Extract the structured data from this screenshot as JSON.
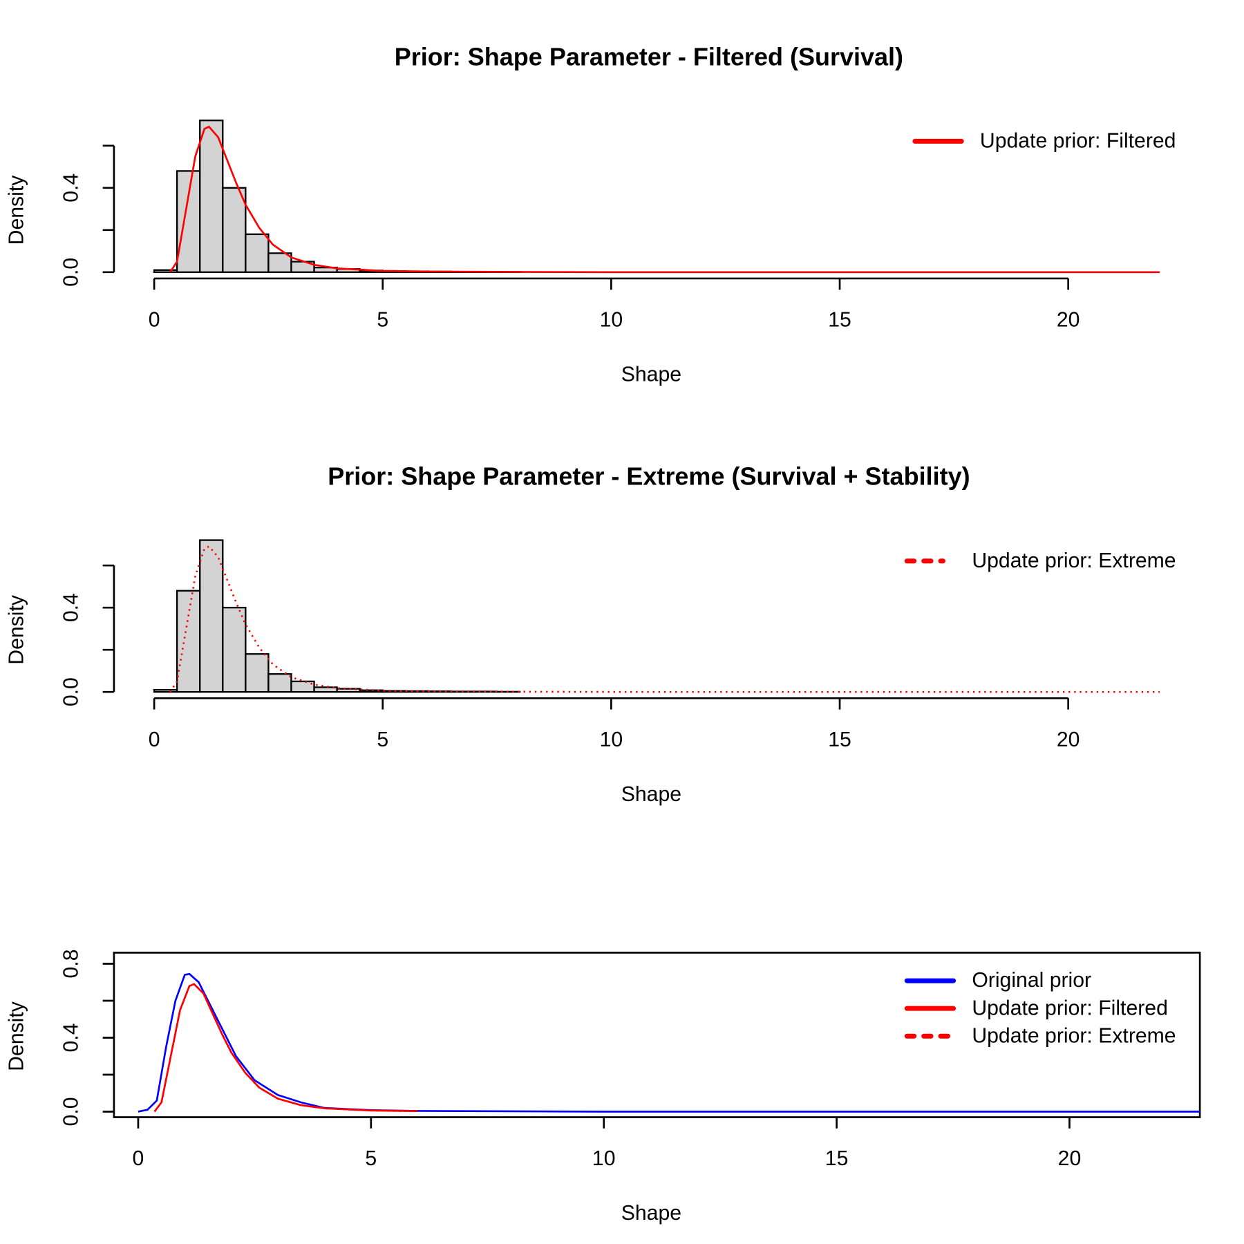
{
  "chart_data": [
    {
      "type": "histogram",
      "title": "Prior: Shape Parameter - Filtered (Survival)",
      "x_label": "Shape",
      "y_label": "Density",
      "bins": [
        0,
        0.5,
        1,
        1.5,
        2,
        2.5,
        3,
        3.5,
        4,
        4.5,
        5,
        5.5,
        6,
        6.5,
        7,
        7.5,
        8
      ],
      "values": [
        0.01,
        0.48,
        0.72,
        0.4,
        0.18,
        0.09,
        0.05,
        0.022,
        0.015,
        0.008,
        0.005,
        0.004,
        0.003,
        0.002,
        0.002,
        0.001
      ],
      "color": "#d3d3d3",
      "series": [
        {
          "name": "Update prior: Filtered",
          "color": "#ff0000",
          "linestyle": "solid",
          "x": [
            0.35,
            0.5,
            0.7,
            0.9,
            1.1,
            1.2,
            1.4,
            1.6,
            1.8,
            2.0,
            2.3,
            2.6,
            3.0,
            3.5,
            4,
            5,
            6,
            8,
            10,
            15,
            22
          ],
          "values": [
            0,
            0.05,
            0.3,
            0.55,
            0.68,
            0.69,
            0.64,
            0.53,
            0.42,
            0.32,
            0.21,
            0.13,
            0.07,
            0.035,
            0.018,
            0.006,
            0.003,
            0.001,
            0,
            0,
            0
          ]
        }
      ],
      "xlim": [
        -0.88,
        22.88
      ],
      "ylim": [
        -0.03,
        0.76
      ],
      "xticks": [
        0,
        5,
        10,
        15,
        20
      ],
      "yticks": [
        {
          "value": 0,
          "label": "0.0"
        },
        {
          "value": 0.2,
          "label": null
        },
        {
          "value": 0.4,
          "label": "0.4"
        },
        {
          "value": 0.6,
          "label": null
        }
      ],
      "legend": "topright"
    },
    {
      "type": "histogram",
      "title": "Prior: Shape Parameter - Extreme (Survival + Stability)",
      "x_label": "Shape",
      "y_label": "Density",
      "bins": [
        0,
        0.5,
        1,
        1.5,
        2,
        2.5,
        3,
        3.5,
        4,
        4.5,
        5,
        5.5,
        6,
        6.5,
        7,
        7.5,
        8
      ],
      "values": [
        0.01,
        0.48,
        0.72,
        0.4,
        0.18,
        0.085,
        0.05,
        0.022,
        0.015,
        0.008,
        0.005,
        0.004,
        0.003,
        0.002,
        0.002,
        0.001
      ],
      "color": "#d3d3d3",
      "series": [
        {
          "name": "Update prior: Extreme",
          "color": "#ff0000",
          "linestyle": "dotted",
          "x": [
            0.35,
            0.5,
            0.7,
            0.9,
            1.1,
            1.2,
            1.4,
            1.6,
            1.8,
            2.0,
            2.3,
            2.6,
            3.0,
            3.5,
            4,
            5,
            6,
            8,
            10,
            15,
            22
          ],
          "values": [
            0,
            0.05,
            0.3,
            0.55,
            0.68,
            0.69,
            0.64,
            0.53,
            0.42,
            0.32,
            0.21,
            0.13,
            0.07,
            0.035,
            0.018,
            0.006,
            0.003,
            0.001,
            0,
            0,
            0
          ]
        }
      ],
      "xlim": [
        -0.88,
        22.88
      ],
      "ylim": [
        -0.03,
        0.76
      ],
      "xticks": [
        0,
        5,
        10,
        15,
        20
      ],
      "yticks": [
        {
          "value": 0,
          "label": "0.0"
        },
        {
          "value": 0.2,
          "label": null
        },
        {
          "value": 0.4,
          "label": "0.4"
        },
        {
          "value": 0.6,
          "label": null
        }
      ],
      "legend": "topright"
    },
    {
      "type": "line",
      "x_label": "Shape",
      "y_label": "Density",
      "box": true,
      "series": [
        {
          "name": "Original prior",
          "color": "#0000ff",
          "linestyle": "solid",
          "x": [
            0,
            0.2,
            0.4,
            0.6,
            0.8,
            1.0,
            1.1,
            1.3,
            1.5,
            1.8,
            2.1,
            2.5,
            3,
            3.5,
            4,
            5,
            6,
            8,
            10,
            15,
            22.8
          ],
          "values": [
            0,
            0.01,
            0.06,
            0.35,
            0.6,
            0.74,
            0.745,
            0.7,
            0.6,
            0.45,
            0.3,
            0.17,
            0.09,
            0.05,
            0.02,
            0.008,
            0.004,
            0.002,
            0,
            0,
            0
          ]
        },
        {
          "name": "Update prior: Filtered",
          "color": "#ff0000",
          "linestyle": "solid",
          "x": [
            0.35,
            0.5,
            0.7,
            0.9,
            1.1,
            1.2,
            1.4,
            1.6,
            1.8,
            2.0,
            2.3,
            2.6,
            3.0,
            3.5,
            4,
            5,
            6
          ],
          "values": [
            0,
            0.05,
            0.3,
            0.55,
            0.68,
            0.69,
            0.64,
            0.53,
            0.42,
            0.32,
            0.21,
            0.13,
            0.07,
            0.035,
            0.018,
            0.006,
            0.003
          ]
        },
        {
          "name": "Update prior: Extreme",
          "color": "#ff0000",
          "linestyle": "dotted",
          "x": [
            0.35,
            0.5,
            0.7,
            0.9,
            1.1,
            1.2,
            1.4,
            1.6,
            1.8,
            2.0,
            2.3,
            2.6,
            3.0,
            3.5,
            4,
            5,
            6
          ],
          "values": [
            0,
            0.05,
            0.3,
            0.55,
            0.68,
            0.69,
            0.64,
            0.53,
            0.42,
            0.32,
            0.21,
            0.13,
            0.07,
            0.035,
            0.018,
            0.006,
            0.003
          ]
        }
      ],
      "xlim": [
        -0.52,
        22.8
      ],
      "ylim": [
        -0.03,
        0.86
      ],
      "xticks": [
        0,
        5,
        10,
        15,
        20
      ],
      "yticks": [
        {
          "value": 0,
          "label": "0.0"
        },
        {
          "value": 0.2,
          "label": null
        },
        {
          "value": 0.4,
          "label": "0.4"
        },
        {
          "value": 0.6,
          "label": null
        },
        {
          "value": 0.8,
          "label": "0.8"
        }
      ],
      "legend": "topright"
    }
  ]
}
